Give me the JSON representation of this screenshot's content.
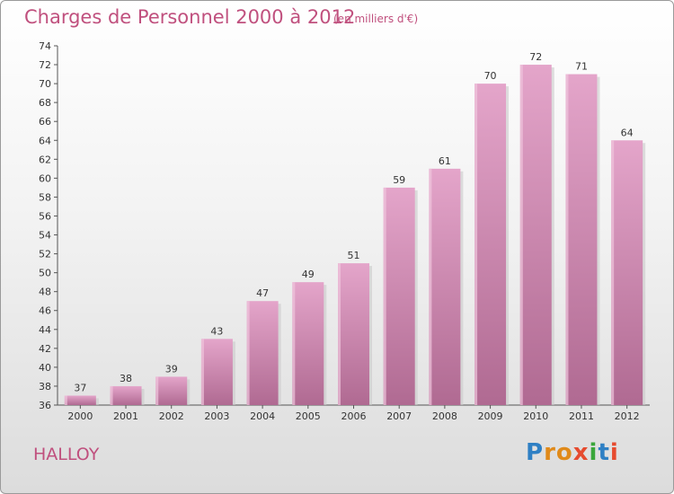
{
  "header": {
    "title": "Charges de Personnel 2000 à 2012",
    "subtitle": "(en milliers d'€)"
  },
  "footer": {
    "commune": "HALLOY",
    "logo": {
      "text": "Proxiti",
      "letters": [
        {
          "ch": "P",
          "color": "#2f80c4"
        },
        {
          "ch": "r",
          "color": "#e08a1a"
        },
        {
          "ch": "o",
          "color": "#e08a1a"
        },
        {
          "ch": "x",
          "color": "#e64b2f"
        },
        {
          "ch": "i",
          "color": "#3aa63a"
        },
        {
          "ch": "t",
          "color": "#2f80c4"
        },
        {
          "ch": "i",
          "color": "#e64b2f"
        }
      ]
    }
  },
  "chart_data": {
    "type": "bar",
    "title": "Charges de Personnel 2000 à 2012",
    "subtitle": "(en milliers d'€)",
    "xlabel": "",
    "ylabel": "",
    "categories": [
      "2000",
      "2001",
      "2002",
      "2003",
      "2004",
      "2005",
      "2006",
      "2007",
      "2008",
      "2009",
      "2010",
      "2011",
      "2012"
    ],
    "values": [
      37,
      38,
      39,
      43,
      47,
      49,
      51,
      59,
      61,
      70,
      72,
      71,
      64
    ],
    "ylim": [
      36,
      74
    ],
    "yticks": [
      36,
      38,
      40,
      42,
      44,
      46,
      48,
      50,
      52,
      54,
      56,
      58,
      60,
      62,
      64,
      66,
      68,
      70,
      72,
      74
    ],
    "grid": false,
    "legend": "none",
    "bar_color": "#d992bb",
    "bar_color_dark": "#b06a92"
  }
}
